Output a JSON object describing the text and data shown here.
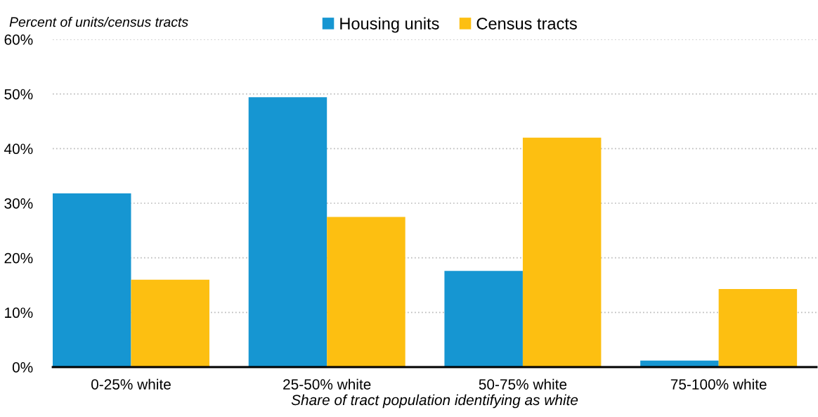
{
  "chart_data": {
    "type": "bar",
    "categories": [
      "0-25% white",
      "25-50% white",
      "50-75% white",
      "75-100% white"
    ],
    "series": [
      {
        "name": "Housing units",
        "color": "#1696d2",
        "values": [
          31.8,
          49.4,
          17.6,
          1.2
        ]
      },
      {
        "name": "Census tracts",
        "color": "#fdbf11",
        "values": [
          16.0,
          27.5,
          42.0,
          14.3
        ]
      }
    ],
    "xlabel": "Share of tract population identifying as white",
    "ylabel": "Percent of units/census tracts",
    "ylim": [
      0,
      60
    ],
    "yticks": [
      {
        "value": 0,
        "label": "0%"
      },
      {
        "value": 10,
        "label": "10%"
      },
      {
        "value": 20,
        "label": "20%"
      },
      {
        "value": 30,
        "label": "30%"
      },
      {
        "value": 40,
        "label": "40%"
      },
      {
        "value": 50,
        "label": "50%"
      },
      {
        "value": 60,
        "label": "60%"
      }
    ],
    "grid": "y",
    "legend": "top"
  }
}
